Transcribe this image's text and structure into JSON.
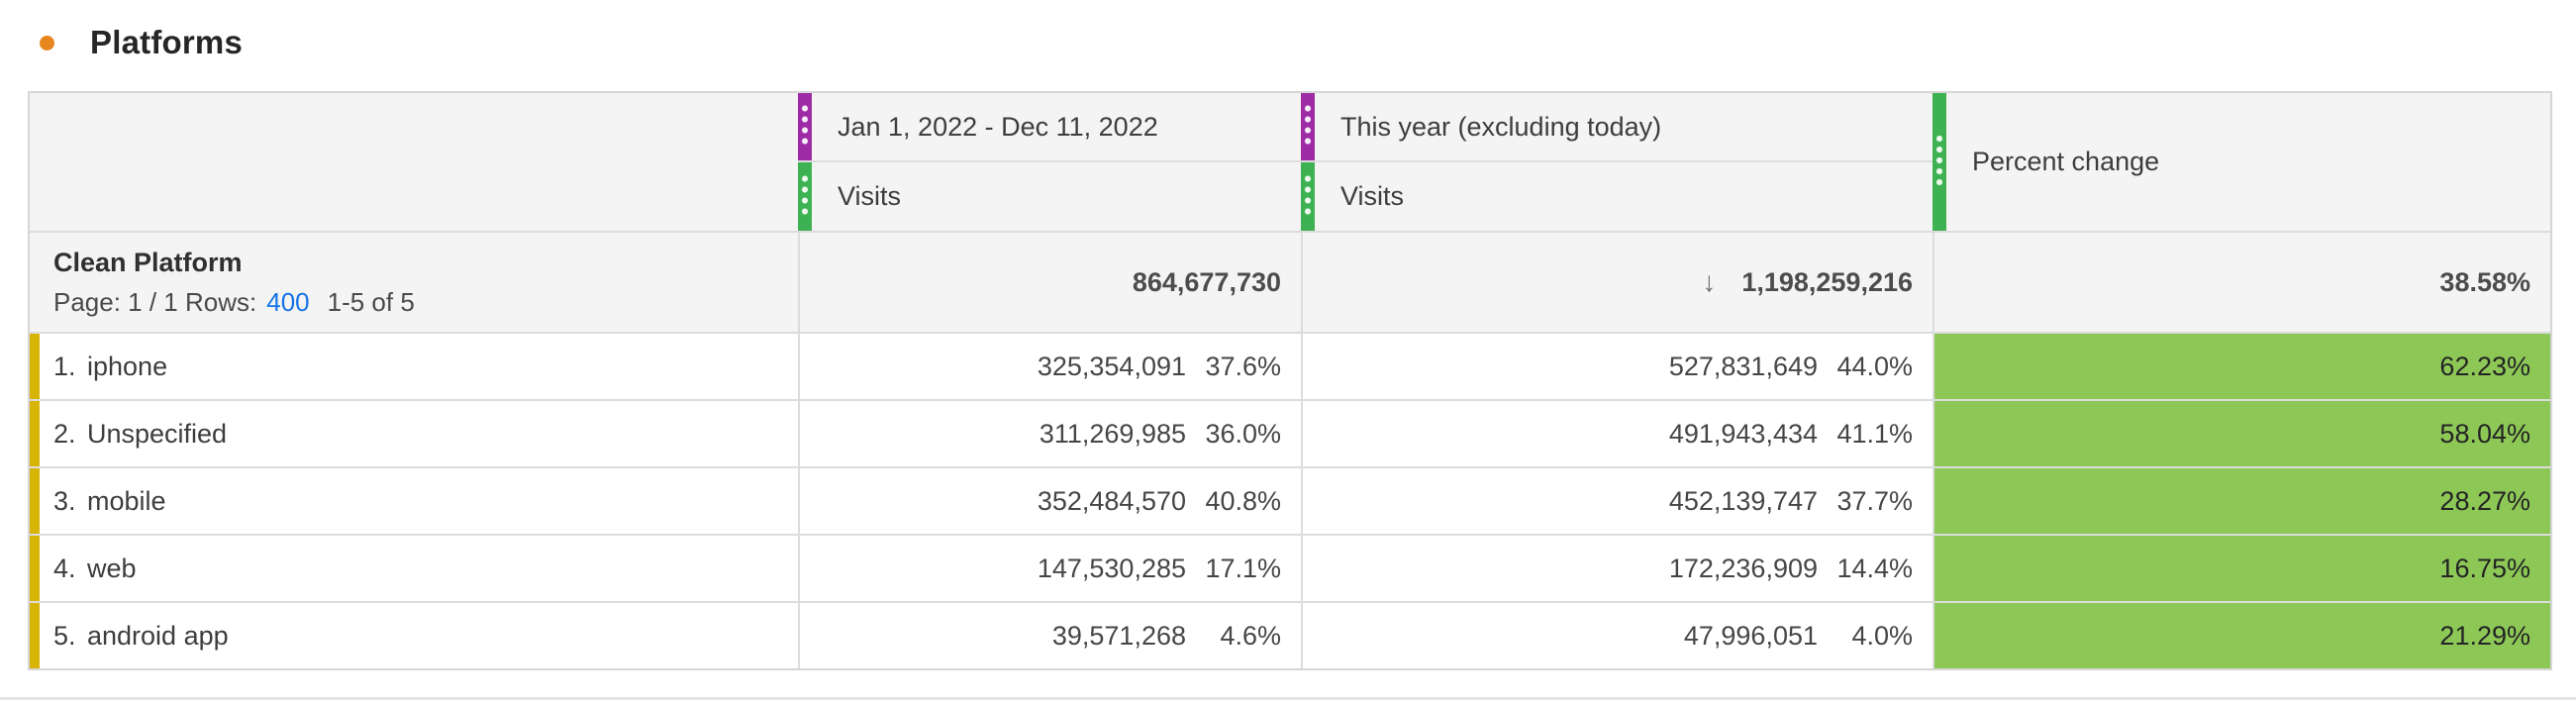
{
  "panel": {
    "title": "Platforms",
    "accent_dot_color": "#e8861e"
  },
  "table": {
    "header": {
      "col_a": {
        "date_range": "Jan 1, 2022 - Dec 11, 2022",
        "metric": "Visits"
      },
      "col_b": {
        "date_range": "This year (excluding today)",
        "metric": "Visits"
      },
      "col_c": {
        "label": "Percent change"
      }
    },
    "summary": {
      "dimension": "Clean Platform",
      "pagination_prefix": "Page: 1 / 1 Rows:",
      "rows_per_page": "400",
      "range": "1-5 of 5",
      "total_visits_a": "864,677,730",
      "sort_arrow": "↓",
      "total_visits_b": "1,198,259,216",
      "total_percent_change": "38.58%"
    },
    "rows": [
      {
        "index": "1.",
        "name": "iphone",
        "visits_a": "325,354,091",
        "share_a": "37.6%",
        "visits_b": "527,831,649",
        "share_b": "44.0%",
        "percent_change": "62.23%"
      },
      {
        "index": "2.",
        "name": "Unspecified",
        "visits_a": "311,269,985",
        "share_a": "36.0%",
        "visits_b": "491,943,434",
        "share_b": "41.1%",
        "percent_change": "58.04%"
      },
      {
        "index": "3.",
        "name": "mobile",
        "visits_a": "352,484,570",
        "share_a": "40.8%",
        "visits_b": "452,139,747",
        "share_b": "37.7%",
        "percent_change": "28.27%"
      },
      {
        "index": "4.",
        "name": "web",
        "visits_a": "147,530,285",
        "share_a": "17.1%",
        "visits_b": "172,236,909",
        "share_b": "14.4%",
        "percent_change": "16.75%"
      },
      {
        "index": "5.",
        "name": "android app",
        "visits_a": "39,571,268",
        "share_a": "4.6%",
        "visits_b": "47,996,051",
        "share_b": "4.0%",
        "percent_change": "21.29%"
      }
    ],
    "colors": {
      "date_range_bar": "#9e2ba6",
      "metric_bar": "#3eb252",
      "positive_change_bg": "#8dc857",
      "row_accent_bar": "#d8b407",
      "link_blue": "#1473e6"
    }
  }
}
